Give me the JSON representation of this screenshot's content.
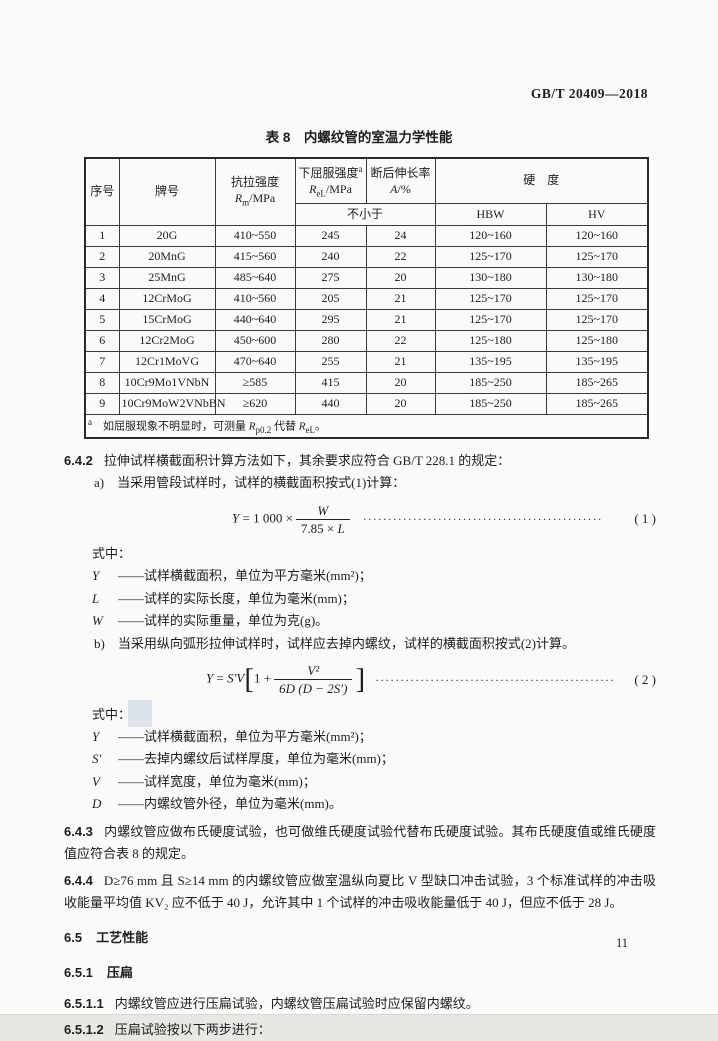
{
  "colors": {
    "ink": "#1d1d1d",
    "page_bg": "#fbfaf8",
    "artifact_blue": "#6e91be"
  },
  "page": {
    "standard_code": "GB/T 20409—2018",
    "page_number": "11"
  },
  "table": {
    "title": "表 8　内螺纹管的室温力学性能",
    "header": {
      "no": "序号",
      "grade": "牌号",
      "tensile_name": "抗拉强度",
      "tensile_sym": "R",
      "tensile_sub": "m",
      "tensile_unit": "/MPa",
      "yield_name": "下屈服强度",
      "yield_sup": "a",
      "yield_sym": "R",
      "yield_sub": "eL",
      "yield_unit": "/MPa",
      "elong_name": "断后伸长率",
      "elong_sym": "A",
      "elong_unit": "/%",
      "hardness": "硬　度",
      "not_less_than": "不小于",
      "hbw": "HBW",
      "hv": "HV"
    },
    "rows": [
      [
        "1",
        "20G",
        "410~550",
        "245",
        "24",
        "120~160",
        "120~160"
      ],
      [
        "2",
        "20MnG",
        "415~560",
        "240",
        "22",
        "125~170",
        "125~170"
      ],
      [
        "3",
        "25MnG",
        "485~640",
        "275",
        "20",
        "130~180",
        "130~180"
      ],
      [
        "4",
        "12CrMoG",
        "410~560",
        "205",
        "21",
        "125~170",
        "125~170"
      ],
      [
        "5",
        "15CrMoG",
        "440~640",
        "295",
        "21",
        "125~170",
        "125~170"
      ],
      [
        "6",
        "12Cr2MoG",
        "450~600",
        "280",
        "22",
        "125~180",
        "125~180"
      ],
      [
        "7",
        "12Cr1MoVG",
        "470~640",
        "255",
        "21",
        "135~195",
        "135~195"
      ],
      [
        "8",
        "10Cr9Mo1VNbN",
        "≥585",
        "415",
        "20",
        "185~250",
        "185~265"
      ],
      [
        "9",
        "10Cr9MoW2VNbBN",
        "≥620",
        "440",
        "20",
        "185~250",
        "185~265"
      ]
    ],
    "footnote": {
      "marker": "a",
      "t1": "　如屈服现象不明显时，可测量 ",
      "sym1": "R",
      "sub1": "p0.2",
      "t2": " 代替 ",
      "sym2": "R",
      "sub2": "eL",
      "t3": "。"
    }
  },
  "sections": {
    "s642": {
      "num": "6.4.2",
      "text": "拉伸试样横截面积计算方法如下，其余要求应符合 GB/T 228.1 的规定："
    },
    "item_a": {
      "label": "a)",
      "text": "当采用管段试样时，试样的横截面积按式(1)计算："
    },
    "formula1": {
      "lhs": "Y",
      "eq": "=",
      "coef": "1 000 ×",
      "num": "W",
      "den_coef": "7.85 × ",
      "den_sym": "L",
      "dots": "················································",
      "label": "( 1 )"
    },
    "where1": {
      "lead": "式中：",
      "defs": [
        {
          "sym": "Y",
          "dash": "——",
          "text": "试样横截面积，单位为平方毫米(mm²)；"
        },
        {
          "sym": "L",
          "dash": "——",
          "text": "试样的实际长度，单位为毫米(mm)；"
        },
        {
          "sym": "W",
          "dash": "——",
          "text": "试样的实际重量，单位为克(g)。"
        }
      ]
    },
    "item_b": {
      "label": "b)",
      "text": "当采用纵向弧形拉伸试样时，试样应去掉内螺纹，试样的横截面积按式(2)计算。"
    },
    "formula2": {
      "lhs": "Y",
      "eq": "=",
      "pre": "S′V",
      "lbracket": "[",
      "inner": "1 +",
      "num": "V²",
      "den": "6D (D − 2S′)",
      "rbracket": "]",
      "dots": "················································",
      "label": "( 2 )"
    },
    "where2": {
      "lead": "式中：",
      "defs": [
        {
          "sym": "Y",
          "dash": "——",
          "text": "试样横截面积，单位为平方毫米(mm²)；"
        },
        {
          "sym": "S′",
          "dash": "——",
          "text": "去掉内螺纹后试样厚度，单位为毫米(mm)；"
        },
        {
          "sym": "V",
          "dash": "——",
          "text": "试样宽度，单位为毫米(mm)；"
        },
        {
          "sym": "D",
          "dash": "——",
          "text": "内螺纹管外径，单位为毫米(mm)。"
        }
      ]
    },
    "s643": {
      "num": "6.4.3",
      "text": "内螺纹管应做布氏硬度试验，也可做维氏硬度试验代替布氏硬度试验。其布氏硬度值或维氏硬度值应符合表 8 的规定。"
    },
    "s644": {
      "num": "6.4.4",
      "text": "D≥76 mm 且 S≥14 mm 的内螺纹管应做室温纵向夏比 V 型缺口冲击试验，3 个标准试样的冲击吸收能量平均值 KV₂ 应不低于 40 J，允许其中 1 个试样的冲击吸收能量低于 40 J，但应不低于 28 J。"
    },
    "s65": {
      "num": "6.5",
      "title": "工艺性能"
    },
    "s651": {
      "num": "6.5.1",
      "title": "压扁"
    },
    "s6511": {
      "num": "6.5.1.1",
      "text": "内螺纹管应进行压扁试验，内螺纹管压扁试验时应保留内螺纹。"
    },
    "s6512": {
      "num": "6.5.1.2",
      "text": "压扁试验按以下两步进行："
    }
  }
}
